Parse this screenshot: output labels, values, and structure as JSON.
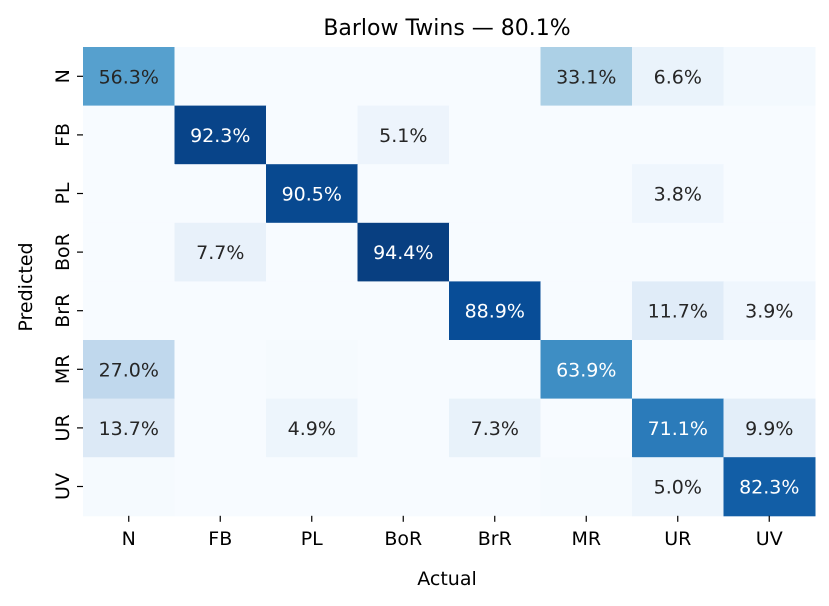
{
  "chart_data": {
    "type": "heatmap",
    "title": "Barlow Twins — 80.1%",
    "xlabel": "Actual",
    "ylabel": "Predicted",
    "x_categories": [
      "N",
      "FB",
      "PL",
      "BoR",
      "BrR",
      "MR",
      "UR",
      "UV"
    ],
    "y_categories": [
      "N",
      "FB",
      "PL",
      "BoR",
      "BrR",
      "MR",
      "UR",
      "UV"
    ],
    "value_unit": "%",
    "colormap": "Blues",
    "vmin": 0,
    "vmax": 100,
    "values": [
      [
        56.3,
        0.0,
        0.0,
        0.0,
        0.0,
        33.1,
        6.6,
        1.9
      ],
      [
        0.0,
        92.3,
        0.0,
        5.1,
        0.0,
        0.0,
        0.0,
        0.0
      ],
      [
        0.0,
        0.0,
        90.5,
        0.0,
        0.0,
        0.0,
        3.8,
        0.0
      ],
      [
        0.0,
        7.7,
        0.0,
        94.4,
        0.0,
        0.0,
        0.0,
        0.0
      ],
      [
        0.0,
        0.0,
        0.0,
        0.0,
        88.9,
        0.0,
        11.7,
        3.9
      ],
      [
        27.0,
        0.0,
        0.9,
        0.0,
        0.0,
        63.9,
        0.0,
        0.0
      ],
      [
        13.7,
        0.0,
        4.9,
        0.0,
        7.3,
        0.0,
        71.1,
        9.9
      ],
      [
        1.0,
        0.0,
        0.0,
        0.0,
        0.0,
        1.0,
        5.0,
        82.3
      ]
    ],
    "labels": [
      [
        "56.3%",
        "",
        "",
        "",
        "",
        "33.1%",
        "6.6%",
        ""
      ],
      [
        "",
        "92.3%",
        "",
        "5.1%",
        "",
        "",
        "",
        ""
      ],
      [
        "",
        "",
        "90.5%",
        "",
        "",
        "",
        "3.8%",
        ""
      ],
      [
        "",
        "7.7%",
        "",
        "94.4%",
        "",
        "",
        "",
        ""
      ],
      [
        "",
        "",
        "",
        "",
        "88.9%",
        "",
        "11.7%",
        "3.9%"
      ],
      [
        "27.0%",
        "",
        "",
        "",
        "",
        "63.9%",
        "",
        ""
      ],
      [
        "13.7%",
        "",
        "4.9%",
        "",
        "7.3%",
        "",
        "71.1%",
        "9.9%"
      ],
      [
        "",
        "",
        "",
        "",
        "",
        "",
        "5.0%",
        "82.3%"
      ]
    ],
    "grid": false,
    "colorbar": false
  }
}
